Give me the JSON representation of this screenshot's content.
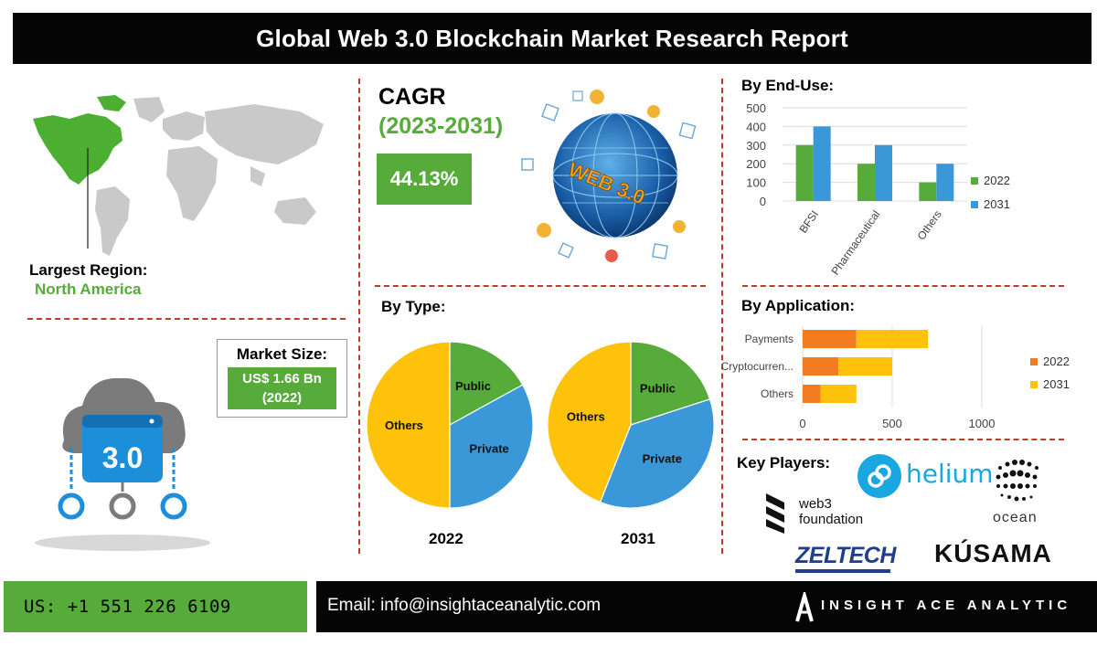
{
  "header": {
    "title": "Global Web 3.0 Blockchain Market Research Report"
  },
  "region": {
    "label": "Largest Region:",
    "value": "North America"
  },
  "market_size": {
    "title": "Market Size:",
    "value": "US$ 1.66 Bn",
    "year": "(2022)"
  },
  "cagr": {
    "title": "CAGR",
    "period": "(2023-2031)",
    "value": "44.13%"
  },
  "globe": {
    "caption": "WEB 3.0"
  },
  "cloud_icon": {
    "caption": "3.0"
  },
  "colors": {
    "green": "#56ab3a",
    "blue": "#3a98d8",
    "yellow": "#fec20b",
    "orange": "#f47c20",
    "red_dash": "#c0392b"
  },
  "chart_data": [
    {
      "type": "bar",
      "title": "By End-Use:",
      "categories": [
        "BFSI",
        "Pharmaceutical",
        "Others"
      ],
      "series": [
        {
          "name": "2022",
          "values": [
            300,
            200,
            100
          ],
          "color": "#56ab3a"
        },
        {
          "name": "2031",
          "values": [
            400,
            300,
            200
          ],
          "color": "#3a98d8"
        }
      ],
      "ylim": [
        0,
        500
      ],
      "yticks": [
        0,
        100,
        200,
        300,
        400,
        500
      ],
      "grid": true,
      "legend": "right"
    },
    {
      "type": "bar",
      "orientation": "horizontal",
      "stacked": true,
      "title": "By Application:",
      "categories": [
        "Payments",
        "Cryptocurren...",
        "Others"
      ],
      "series": [
        {
          "name": "2022",
          "values": [
            300,
            200,
            100
          ],
          "color": "#f47c20"
        },
        {
          "name": "2031",
          "values": [
            400,
            300,
            200
          ],
          "color": "#fec20b"
        }
      ],
      "xlim": [
        0,
        1000
      ],
      "xticks": [
        0,
        500,
        1000
      ],
      "grid": true,
      "legend": "right"
    },
    {
      "type": "pie",
      "title": "By Type:",
      "year": "2022",
      "slices": [
        {
          "label": "Public",
          "value": 17,
          "color": "#56ab3a"
        },
        {
          "label": "Private",
          "value": 33,
          "color": "#3a98d8"
        },
        {
          "label": "Others",
          "value": 50,
          "color": "#fec20b"
        }
      ]
    },
    {
      "type": "pie",
      "year": "2031",
      "slices": [
        {
          "label": "Public",
          "value": 20,
          "color": "#56ab3a"
        },
        {
          "label": "Private",
          "value": 36,
          "color": "#3a98d8"
        },
        {
          "label": "Others",
          "value": 44,
          "color": "#fec20b"
        }
      ]
    }
  ],
  "key_players": {
    "title": "Key Players:",
    "companies": [
      "helium",
      "web3",
      "foundation",
      "ocean",
      "ZELTECH",
      "KÚSAMA"
    ]
  },
  "footer": {
    "phone": "US: +1 551 226 6109",
    "email": "Email: info@insightaceanalytic.com",
    "brand": "INSIGHT ACE ANALYTIC",
    "brand_mark": "A"
  }
}
